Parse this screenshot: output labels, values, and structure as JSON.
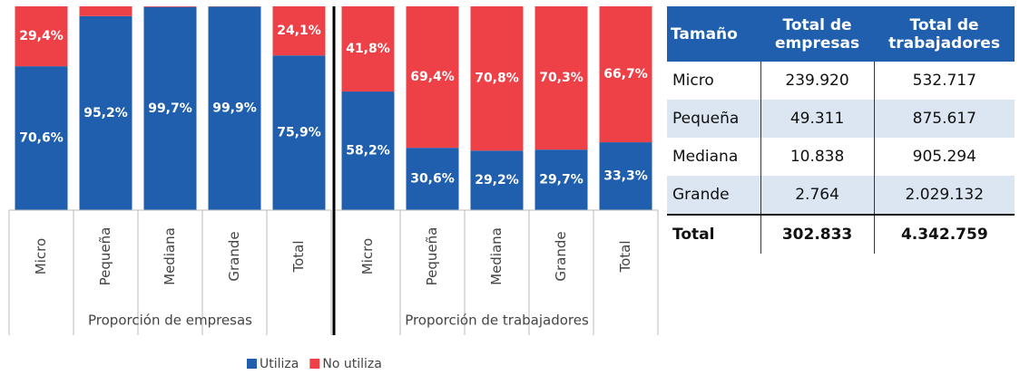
{
  "chart_data": [
    {
      "type": "stacked-bar",
      "x_label": "Proporción de empresas",
      "categories": [
        "Micro",
        "Pequeña",
        "Mediana",
        "Grande",
        "Total"
      ],
      "ylim": [
        0,
        100
      ],
      "series": [
        {
          "name": "Utiliza",
          "color": "#1f5fad",
          "values": [
            70.6,
            95.2,
            99.7,
            99.9,
            75.9
          ],
          "value_labels": [
            "70,6%",
            "95,2%",
            "99,7%",
            "99,9%",
            "75,9%"
          ]
        },
        {
          "name": "No utiliza",
          "color": "#ee4047",
          "values": [
            29.4,
            4.8,
            0.3,
            0.1,
            24.1
          ],
          "value_labels": [
            "29,4%",
            null,
            null,
            null,
            "24,1%"
          ]
        }
      ]
    },
    {
      "type": "stacked-bar",
      "x_label": "Proporción de trabajadores",
      "categories": [
        "Micro",
        "Pequeña",
        "Mediana",
        "Grande",
        "Total"
      ],
      "ylim": [
        0,
        100
      ],
      "series": [
        {
          "name": "Utiliza",
          "color": "#1f5fad",
          "values": [
            58.2,
            30.6,
            29.2,
            29.7,
            33.3
          ],
          "value_labels": [
            "58,2%",
            "30,6%",
            "29,2%",
            "29,7%",
            "33,3%"
          ]
        },
        {
          "name": "No utiliza",
          "color": "#ee4047",
          "values": [
            41.8,
            69.4,
            70.8,
            70.3,
            66.7
          ],
          "value_labels": [
            "41,8%",
            "69,4%",
            "70,8%",
            "70,3%",
            "66,7%"
          ]
        }
      ]
    }
  ],
  "table": {
    "columns": [
      "Tamaño",
      "Total de empresas",
      "Total de trabajadores"
    ],
    "rows": [
      [
        "Micro",
        "239.920",
        "532.717"
      ],
      [
        "Pequeña",
        "49.311",
        "875.617"
      ],
      [
        "Mediana",
        "10.838",
        "905.294"
      ],
      [
        "Grande",
        "2.764",
        "2.029.132"
      ],
      [
        "Total",
        "302.833",
        "4.342.759"
      ]
    ]
  }
}
